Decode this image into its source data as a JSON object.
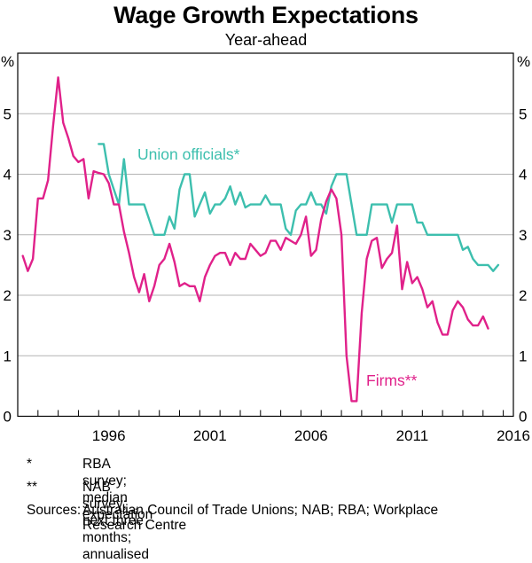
{
  "title": "Wage Growth Expectations",
  "subtitle": "Year-ahead",
  "footnotes": [
    {
      "mark": "*",
      "text": "RBA survey; median expectation"
    },
    {
      "mark": "**",
      "text": "NAB survey; next three months; annualised"
    }
  ],
  "sources_label": "Sources:",
  "sources_text_line1": "Australian Council of Trade Unions; NAB; RBA; Workplace",
  "sources_text_line2": "Research Centre",
  "chart_data": {
    "type": "line",
    "title": "Wage Growth Expectations",
    "subtitle": "Year-ahead",
    "y_unit_left": "%",
    "y_unit_right": "%",
    "ylim": [
      0,
      6
    ],
    "yticks": [
      0,
      1,
      2,
      3,
      4,
      5
    ],
    "xlim": [
      1992.0,
      2016.5
    ],
    "xticks": [
      1996,
      2001,
      2006,
      2011,
      2016
    ],
    "grid": true,
    "series": [
      {
        "name": "Union officials*",
        "color": "#3dbfae",
        "points": [
          [
            1996.0,
            4.5
          ],
          [
            1996.25,
            4.5
          ],
          [
            1996.5,
            4.0
          ],
          [
            1996.75,
            3.75
          ],
          [
            1997.0,
            3.5
          ],
          [
            1997.25,
            4.25
          ],
          [
            1997.5,
            3.5
          ],
          [
            1998.0,
            3.5
          ],
          [
            1998.25,
            3.5
          ],
          [
            1998.5,
            3.25
          ],
          [
            1998.75,
            3.0
          ],
          [
            1999.0,
            3.0
          ],
          [
            1999.25,
            3.0
          ],
          [
            1999.5,
            3.3
          ],
          [
            1999.75,
            3.1
          ],
          [
            2000.0,
            3.75
          ],
          [
            2000.25,
            4.0
          ],
          [
            2000.5,
            4.0
          ],
          [
            2000.75,
            3.3
          ],
          [
            2001.0,
            3.5
          ],
          [
            2001.25,
            3.7
          ],
          [
            2001.5,
            3.35
          ],
          [
            2001.75,
            3.5
          ],
          [
            2002.0,
            3.5
          ],
          [
            2002.25,
            3.6
          ],
          [
            2002.5,
            3.8
          ],
          [
            2002.75,
            3.5
          ],
          [
            2003.0,
            3.7
          ],
          [
            2003.25,
            3.45
          ],
          [
            2003.5,
            3.5
          ],
          [
            2003.75,
            3.5
          ],
          [
            2004.0,
            3.5
          ],
          [
            2004.25,
            3.65
          ],
          [
            2004.5,
            3.5
          ],
          [
            2004.75,
            3.5
          ],
          [
            2005.0,
            3.5
          ],
          [
            2005.25,
            3.1
          ],
          [
            2005.5,
            3.0
          ],
          [
            2005.75,
            3.4
          ],
          [
            2006.0,
            3.5
          ],
          [
            2006.25,
            3.5
          ],
          [
            2006.5,
            3.7
          ],
          [
            2006.75,
            3.5
          ],
          [
            2007.0,
            3.5
          ],
          [
            2007.25,
            3.35
          ],
          [
            2007.5,
            3.8
          ],
          [
            2007.75,
            4.0
          ],
          [
            2008.0,
            4.0
          ],
          [
            2008.25,
            4.0
          ],
          [
            2008.5,
            3.5
          ],
          [
            2008.75,
            3.0
          ],
          [
            2009.0,
            3.0
          ],
          [
            2009.25,
            3.0
          ],
          [
            2009.5,
            3.5
          ],
          [
            2009.75,
            3.5
          ],
          [
            2010.0,
            3.5
          ],
          [
            2010.25,
            3.5
          ],
          [
            2010.5,
            3.2
          ],
          [
            2010.75,
            3.5
          ],
          [
            2011.0,
            3.5
          ],
          [
            2011.25,
            3.5
          ],
          [
            2011.5,
            3.5
          ],
          [
            2011.75,
            3.2
          ],
          [
            2012.0,
            3.2
          ],
          [
            2012.25,
            3.0
          ],
          [
            2012.5,
            3.0
          ],
          [
            2012.75,
            3.0
          ],
          [
            2013.0,
            3.0
          ],
          [
            2013.25,
            3.0
          ],
          [
            2013.5,
            3.0
          ],
          [
            2013.75,
            3.0
          ],
          [
            2014.0,
            2.75
          ],
          [
            2014.25,
            2.8
          ],
          [
            2014.5,
            2.6
          ],
          [
            2014.75,
            2.5
          ],
          [
            2015.0,
            2.5
          ],
          [
            2015.25,
            2.5
          ],
          [
            2015.5,
            2.4
          ],
          [
            2015.75,
            2.5
          ]
        ]
      },
      {
        "name": "Firms**",
        "color": "#e0218a",
        "points": [
          [
            1992.25,
            2.65
          ],
          [
            1992.5,
            2.4
          ],
          [
            1992.75,
            2.6
          ],
          [
            1993.0,
            3.6
          ],
          [
            1993.25,
            3.6
          ],
          [
            1993.5,
            3.9
          ],
          [
            1993.75,
            4.8
          ],
          [
            1994.0,
            5.6
          ],
          [
            1994.25,
            4.85
          ],
          [
            1994.5,
            4.6
          ],
          [
            1994.75,
            4.3
          ],
          [
            1995.0,
            4.2
          ],
          [
            1995.25,
            4.25
          ],
          [
            1995.5,
            3.6
          ],
          [
            1995.75,
            4.05
          ],
          [
            1996.0,
            4.02
          ],
          [
            1996.25,
            4.0
          ],
          [
            1996.5,
            3.85
          ],
          [
            1996.75,
            3.5
          ],
          [
            1997.0,
            3.5
          ],
          [
            1997.25,
            3.05
          ],
          [
            1997.5,
            2.7
          ],
          [
            1997.75,
            2.3
          ],
          [
            1998.0,
            2.05
          ],
          [
            1998.25,
            2.35
          ],
          [
            1998.5,
            1.9
          ],
          [
            1998.75,
            2.15
          ],
          [
            1999.0,
            2.5
          ],
          [
            1999.25,
            2.6
          ],
          [
            1999.5,
            2.85
          ],
          [
            1999.75,
            2.55
          ],
          [
            2000.0,
            2.15
          ],
          [
            2000.25,
            2.2
          ],
          [
            2000.5,
            2.15
          ],
          [
            2000.75,
            2.15
          ],
          [
            2001.0,
            1.9
          ],
          [
            2001.25,
            2.3
          ],
          [
            2001.5,
            2.5
          ],
          [
            2001.75,
            2.65
          ],
          [
            2002.0,
            2.7
          ],
          [
            2002.25,
            2.7
          ],
          [
            2002.5,
            2.5
          ],
          [
            2002.75,
            2.7
          ],
          [
            2003.0,
            2.6
          ],
          [
            2003.25,
            2.6
          ],
          [
            2003.5,
            2.85
          ],
          [
            2003.75,
            2.75
          ],
          [
            2004.0,
            2.65
          ],
          [
            2004.25,
            2.7
          ],
          [
            2004.5,
            2.9
          ],
          [
            2004.75,
            2.9
          ],
          [
            2005.0,
            2.75
          ],
          [
            2005.25,
            2.95
          ],
          [
            2005.5,
            2.9
          ],
          [
            2005.75,
            2.85
          ],
          [
            2006.0,
            3.0
          ],
          [
            2006.25,
            3.3
          ],
          [
            2006.5,
            2.65
          ],
          [
            2006.75,
            2.75
          ],
          [
            2007.0,
            3.25
          ],
          [
            2007.25,
            3.55
          ],
          [
            2007.5,
            3.75
          ],
          [
            2007.75,
            3.6
          ],
          [
            2008.0,
            3.0
          ],
          [
            2008.25,
            1.0
          ],
          [
            2008.5,
            0.25
          ],
          [
            2008.75,
            0.25
          ],
          [
            2009.0,
            1.7
          ],
          [
            2009.25,
            2.6
          ],
          [
            2009.5,
            2.9
          ],
          [
            2009.75,
            2.95
          ],
          [
            2010.0,
            2.45
          ],
          [
            2010.25,
            2.6
          ],
          [
            2010.5,
            2.7
          ],
          [
            2010.75,
            3.15
          ],
          [
            2011.0,
            2.1
          ],
          [
            2011.25,
            2.55
          ],
          [
            2011.5,
            2.2
          ],
          [
            2011.75,
            2.3
          ],
          [
            2012.0,
            2.1
          ],
          [
            2012.25,
            1.8
          ],
          [
            2012.5,
            1.9
          ],
          [
            2012.75,
            1.55
          ],
          [
            2013.0,
            1.35
          ],
          [
            2013.25,
            1.35
          ],
          [
            2013.5,
            1.75
          ],
          [
            2013.75,
            1.9
          ],
          [
            2014.0,
            1.8
          ],
          [
            2014.25,
            1.6
          ],
          [
            2014.5,
            1.5
          ],
          [
            2014.75,
            1.5
          ],
          [
            2015.0,
            1.65
          ],
          [
            2015.25,
            1.45
          ]
        ]
      }
    ],
    "annotations": [
      {
        "text": "Union officials*",
        "series": 0
      },
      {
        "text": "Firms**",
        "series": 1
      }
    ]
  }
}
